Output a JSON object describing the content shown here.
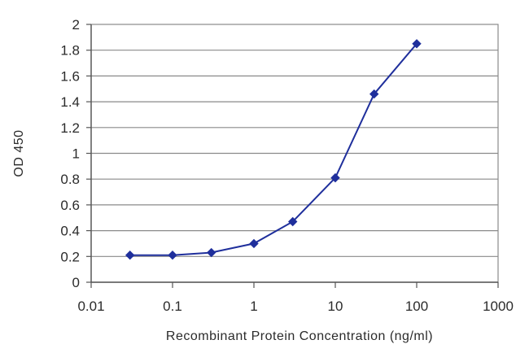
{
  "chart_data": {
    "type": "line",
    "title": "",
    "xlabel": "Recombinant Protein Concentration (ng/ml)",
    "ylabel": "OD 450",
    "x_scale": "log",
    "xlim": [
      0.01,
      1000
    ],
    "ylim": [
      0,
      2
    ],
    "x_ticks": [
      0.01,
      0.1,
      1,
      10,
      100,
      1000
    ],
    "x_tick_labels": [
      "0.01",
      "0.1",
      "1",
      "10",
      "100",
      "1000"
    ],
    "y_ticks": [
      0,
      0.2,
      0.4,
      0.6,
      0.8,
      1,
      1.2,
      1.4,
      1.6,
      1.8,
      2
    ],
    "y_tick_labels": [
      "0",
      "0.2",
      "0.4",
      "0.6",
      "0.8",
      "1",
      "1.2",
      "1.4",
      "1.6",
      "1.8",
      "2"
    ],
    "grid": "horizontal",
    "legend": "none",
    "series": [
      {
        "x": [
          0.03,
          0.1,
          0.3,
          1,
          3,
          10,
          30,
          100
        ],
        "y": [
          0.21,
          0.21,
          0.23,
          0.3,
          0.47,
          0.81,
          1.46,
          1.85
        ],
        "color": "#1f2f9c",
        "marker": "diamond"
      }
    ]
  }
}
